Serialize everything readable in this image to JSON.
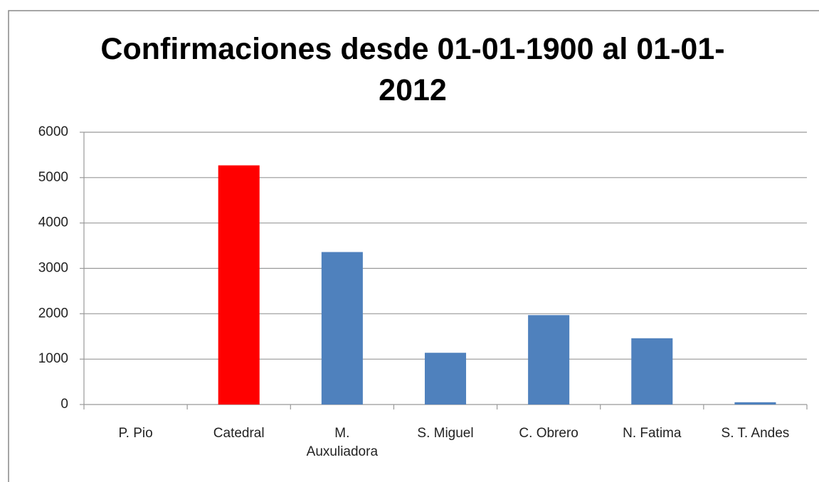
{
  "chart_data": {
    "type": "bar",
    "title": "Confirmaciones desde 01-01-1900 al 01-01-2012",
    "categories": [
      "P. Pio",
      "Catedral",
      "M. Auxuliadora",
      "S. Miguel",
      "C. Obrero",
      "N. Fatima",
      "S. T. Andes"
    ],
    "values": [
      0,
      5270,
      3360,
      1140,
      1970,
      1460,
      50
    ],
    "colors": [
      "#4f81bd",
      "#ff0000",
      "#4f81bd",
      "#4f81bd",
      "#4f81bd",
      "#4f81bd",
      "#4f81bd"
    ],
    "ylim": [
      0,
      6000
    ],
    "yticks": [
      0,
      1000,
      2000,
      3000,
      4000,
      5000,
      6000
    ],
    "grid": true
  }
}
